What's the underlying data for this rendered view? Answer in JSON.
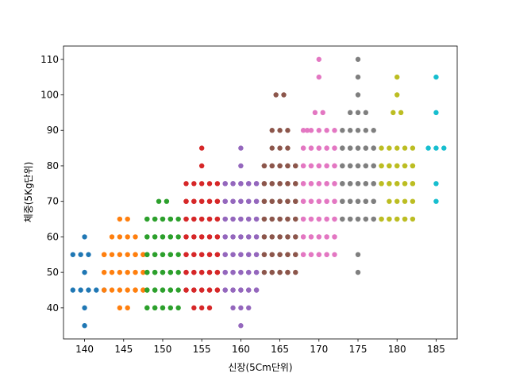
{
  "chart_data": {
    "type": "scatter",
    "title": "",
    "xlabel": "신장(5Cm단위)",
    "ylabel": "체중(5Kg단위)",
    "xlim": [
      137.3,
      187.7
    ],
    "ylim": [
      31.25,
      113.75
    ],
    "xticks": [
      140,
      145,
      150,
      155,
      160,
      165,
      170,
      175,
      180,
      185
    ],
    "yticks": [
      40,
      50,
      60,
      70,
      80,
      90,
      100,
      110
    ],
    "grid": false,
    "legend": "none",
    "marker_radius_px": 3.2,
    "series": [
      {
        "x": 140,
        "color": "#1f77b4",
        "y": [
          60,
          55,
          55,
          55,
          50,
          45,
          45,
          45,
          45,
          45,
          40,
          35
        ],
        "xs": [
          140,
          138.5,
          139.5,
          140.5,
          140,
          138.5,
          139.5,
          140.5,
          141.5,
          142.5,
          140,
          140
        ]
      },
      {
        "x": 145,
        "color": "#ff7f0e",
        "y": [
          65,
          65,
          60,
          60,
          60,
          60,
          55,
          55,
          55,
          55,
          55,
          55,
          55,
          55,
          55,
          50,
          50,
          50,
          50,
          50,
          50,
          45,
          45,
          45,
          45,
          45,
          45,
          45,
          45,
          40,
          40
        ],
        "xs": [
          144.5,
          145.5,
          143.5,
          144.5,
          145.5,
          146.5,
          142.5,
          143.5,
          144.5,
          145.5,
          146.5,
          147.5,
          146.5,
          147.5,
          142.5,
          142.5,
          143.5,
          144.5,
          145.5,
          146.5,
          147.5,
          142.5,
          143.5,
          144.5,
          145.5,
          146.5,
          147.5,
          146.5,
          147.5,
          144.5,
          145.5
        ]
      },
      {
        "x": 150,
        "color": "#2ca02c",
        "y": [
          70,
          70,
          65,
          65,
          65,
          65,
          65,
          65,
          65,
          65,
          65,
          60,
          60,
          60,
          60,
          60,
          60,
          60,
          60,
          60,
          55,
          55,
          55,
          55,
          55,
          55,
          55,
          55,
          55,
          50,
          50,
          50,
          50,
          50,
          50,
          50,
          50,
          50,
          45,
          45,
          45,
          45,
          45,
          45,
          45,
          45,
          45,
          40,
          40,
          40,
          40,
          40,
          40,
          40,
          40
        ],
        "xs": [
          149.5,
          150.5,
          148,
          149,
          150,
          151,
          152,
          148,
          149,
          150,
          151,
          148,
          149,
          150,
          151,
          152,
          148,
          149,
          150,
          151,
          148,
          149,
          150,
          151,
          152,
          148,
          149,
          150,
          151,
          148,
          149,
          150,
          151,
          152,
          148,
          149,
          150,
          151,
          148,
          149,
          150,
          151,
          152,
          148,
          149,
          150,
          151,
          148,
          149,
          150,
          151,
          152,
          148,
          149,
          150
        ]
      },
      {
        "x": 155,
        "color": "#d62728",
        "y": [
          85,
          80,
          75,
          75,
          75,
          75,
          75,
          70,
          70,
          70,
          70,
          70,
          70,
          70,
          70,
          70,
          70,
          65,
          65,
          65,
          65,
          65,
          65,
          65,
          65,
          65,
          65,
          60,
          60,
          60,
          60,
          60,
          60,
          60,
          60,
          60,
          60,
          55,
          55,
          55,
          55,
          55,
          55,
          55,
          55,
          55,
          55,
          50,
          50,
          50,
          50,
          50,
          50,
          50,
          50,
          50,
          50,
          45,
          45,
          45,
          45,
          45,
          45,
          45,
          45,
          45,
          45,
          40,
          40,
          40
        ],
        "xs": [
          155,
          155,
          153,
          154,
          155,
          156,
          157,
          153,
          154,
          155,
          156,
          157,
          153,
          154,
          155,
          156,
          157,
          153,
          154,
          155,
          156,
          157,
          153,
          154,
          155,
          156,
          157,
          153,
          154,
          155,
          156,
          157,
          153,
          154,
          155,
          156,
          157,
          153,
          154,
          155,
          156,
          157,
          153,
          154,
          155,
          156,
          157,
          153,
          154,
          155,
          156,
          157,
          153,
          154,
          155,
          156,
          157,
          153,
          154,
          155,
          156,
          157,
          153,
          154,
          155,
          156,
          157,
          154,
          155,
          156
        ]
      },
      {
        "x": 160,
        "color": "#9467bd",
        "y": [
          85,
          80,
          75,
          75,
          75,
          75,
          75,
          75,
          75,
          75,
          75,
          75,
          70,
          70,
          70,
          70,
          70,
          70,
          70,
          70,
          70,
          70,
          65,
          65,
          65,
          65,
          65,
          65,
          65,
          65,
          65,
          65,
          60,
          60,
          60,
          60,
          60,
          60,
          60,
          60,
          60,
          60,
          55,
          55,
          55,
          55,
          55,
          55,
          55,
          55,
          55,
          55,
          50,
          50,
          50,
          50,
          50,
          50,
          50,
          50,
          50,
          50,
          45,
          45,
          45,
          45,
          45,
          45,
          45,
          45,
          45,
          45,
          40,
          40,
          40,
          35
        ],
        "xs": [
          160,
          160,
          158,
          159,
          160,
          161,
          162,
          158,
          159,
          160,
          161,
          162,
          158,
          159,
          160,
          161,
          162,
          158,
          159,
          160,
          161,
          162,
          158,
          159,
          160,
          161,
          162,
          158,
          159,
          160,
          161,
          162,
          158,
          159,
          160,
          161,
          162,
          158,
          159,
          160,
          161,
          162,
          158,
          159,
          160,
          161,
          162,
          158,
          159,
          160,
          161,
          162,
          158,
          159,
          160,
          161,
          162,
          158,
          159,
          160,
          161,
          162,
          158,
          159,
          160,
          161,
          162,
          158,
          159,
          160,
          161,
          162,
          159,
          160,
          161,
          160
        ]
      },
      {
        "x": 165,
        "color": "#8c564b",
        "y": [
          100,
          100,
          90,
          90,
          90,
          85,
          85,
          85,
          80,
          80,
          80,
          80,
          80,
          80,
          80,
          80,
          80,
          80,
          75,
          75,
          75,
          75,
          75,
          75,
          75,
          75,
          75,
          75,
          70,
          70,
          70,
          70,
          70,
          70,
          70,
          70,
          70,
          70,
          65,
          65,
          65,
          65,
          65,
          65,
          65,
          65,
          65,
          65,
          60,
          60,
          60,
          60,
          60,
          60,
          60,
          60,
          60,
          60,
          55,
          55,
          55,
          55,
          55,
          55,
          55,
          55,
          55,
          55,
          50,
          50,
          50,
          50,
          50,
          50,
          50,
          50
        ],
        "xs": [
          164.5,
          165.5,
          164,
          165,
          166,
          164,
          165,
          166,
          163,
          164,
          165,
          166,
          167,
          163,
          164,
          165,
          166,
          167,
          163,
          164,
          165,
          166,
          167,
          163,
          164,
          165,
          166,
          167,
          163,
          164,
          165,
          166,
          167,
          163,
          164,
          165,
          166,
          167,
          163,
          164,
          165,
          166,
          167,
          163,
          164,
          165,
          166,
          167,
          163,
          164,
          165,
          166,
          167,
          163,
          164,
          165,
          166,
          167,
          163,
          164,
          165,
          166,
          167,
          163,
          164,
          165,
          166,
          167,
          163,
          164,
          165,
          166,
          167,
          164,
          165,
          166
        ]
      },
      {
        "x": 170,
        "color": "#e377c2",
        "y": [
          110,
          105,
          95,
          95,
          90,
          90,
          90,
          90,
          90,
          90,
          85,
          85,
          85,
          85,
          85,
          85,
          85,
          85,
          85,
          85,
          80,
          80,
          80,
          80,
          80,
          80,
          80,
          80,
          80,
          80,
          75,
          75,
          75,
          75,
          75,
          75,
          75,
          75,
          75,
          75,
          70,
          70,
          70,
          70,
          70,
          70,
          70,
          70,
          70,
          70,
          65,
          65,
          65,
          65,
          65,
          65,
          65,
          65,
          65,
          65,
          60,
          60,
          60,
          60,
          60,
          60,
          60,
          60,
          60,
          60,
          55,
          55,
          55,
          55,
          55,
          55,
          55,
          55,
          55
        ],
        "xs": [
          170,
          170,
          169.5,
          170.5,
          168,
          169,
          170,
          171,
          172,
          168.5,
          168,
          169,
          170,
          171,
          172,
          168,
          169,
          170,
          171,
          172,
          168,
          169,
          170,
          171,
          172,
          168,
          169,
          170,
          171,
          172,
          168,
          169,
          170,
          171,
          172,
          168,
          169,
          170,
          171,
          172,
          168,
          169,
          170,
          171,
          172,
          168,
          169,
          170,
          171,
          172,
          168,
          169,
          170,
          171,
          172,
          168,
          169,
          170,
          171,
          172,
          168,
          169,
          170,
          171,
          172,
          168,
          169,
          170,
          171,
          172,
          168,
          169,
          170,
          171,
          172,
          168,
          169,
          170,
          171
        ]
      },
      {
        "x": 175,
        "color": "#7f7f7f",
        "y": [
          110,
          105,
          100,
          95,
          95,
          95,
          90,
          90,
          90,
          90,
          90,
          85,
          85,
          85,
          85,
          85,
          85,
          85,
          85,
          85,
          85,
          80,
          80,
          80,
          80,
          80,
          80,
          80,
          80,
          80,
          80,
          75,
          75,
          75,
          75,
          75,
          75,
          75,
          75,
          75,
          75,
          70,
          70,
          70,
          70,
          70,
          70,
          70,
          70,
          70,
          70,
          65,
          65,
          65,
          65,
          65,
          65,
          65,
          65,
          65,
          65,
          55,
          50
        ],
        "xs": [
          175,
          175,
          175,
          174,
          175,
          176,
          173,
          174,
          175,
          176,
          177,
          173,
          174,
          175,
          176,
          177,
          173,
          174,
          175,
          176,
          177,
          173,
          174,
          175,
          176,
          177,
          173,
          174,
          175,
          176,
          177,
          173,
          174,
          175,
          176,
          177,
          173,
          174,
          175,
          176,
          177,
          173,
          174,
          175,
          176,
          177,
          173,
          174,
          175,
          176,
          177,
          173,
          174,
          175,
          176,
          177,
          173,
          174,
          175,
          176,
          177,
          175,
          175
        ]
      },
      {
        "x": 180,
        "color": "#bcbd22",
        "y": [
          105,
          100,
          95,
          95,
          85,
          85,
          85,
          85,
          85,
          80,
          80,
          80,
          80,
          80,
          80,
          80,
          80,
          80,
          80,
          75,
          75,
          75,
          75,
          75,
          75,
          75,
          75,
          75,
          75,
          70,
          70,
          70,
          70,
          65,
          65,
          65,
          65,
          65,
          65,
          65,
          65,
          65
        ],
        "xs": [
          180,
          180,
          179.5,
          180.5,
          178,
          179,
          180,
          181,
          182,
          178,
          179,
          180,
          181,
          182,
          178,
          179,
          180,
          181,
          182,
          178,
          179,
          180,
          181,
          182,
          178,
          179,
          180,
          181,
          182,
          179,
          180,
          181,
          182,
          178,
          179,
          180,
          181,
          182,
          178,
          179,
          180,
          181
        ]
      },
      {
        "x": 185,
        "color": "#17becf",
        "y": [
          105,
          95,
          85,
          85,
          85,
          75,
          70
        ],
        "xs": [
          185,
          185,
          184,
          185,
          186,
          185,
          185
        ]
      }
    ]
  }
}
